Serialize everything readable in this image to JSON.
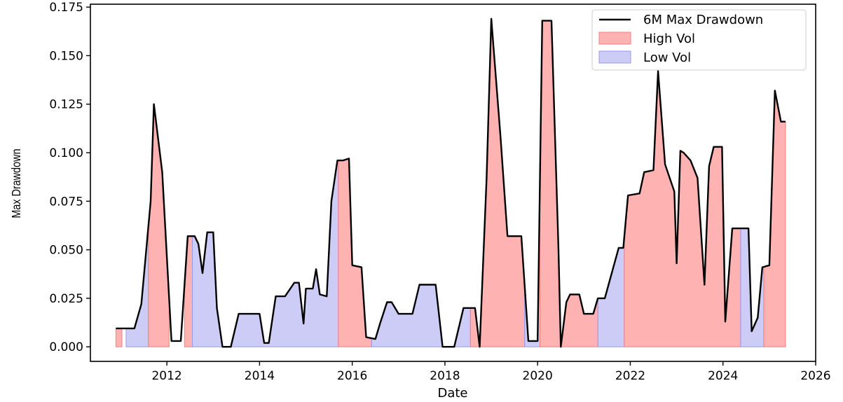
{
  "chart_data": {
    "type": "area",
    "title": "",
    "xlabel": "Date",
    "ylabel": "Max Drawdown",
    "xlim": [
      2010.35,
      2026.0
    ],
    "ylim": [
      -0.0075,
      0.1765
    ],
    "xticks": [
      {
        "value": 2012,
        "label": "2012"
      },
      {
        "value": 2014,
        "label": "2014"
      },
      {
        "value": 2016,
        "label": "2016"
      },
      {
        "value": 2018,
        "label": "2018"
      },
      {
        "value": 2020,
        "label": "2020"
      },
      {
        "value": 2022,
        "label": "2022"
      },
      {
        "value": 2024,
        "label": "2024"
      },
      {
        "value": 2026,
        "label": "2026"
      }
    ],
    "yticks": [
      {
        "value": 0.0,
        "label": "0.000"
      },
      {
        "value": 0.025,
        "label": "0.025"
      },
      {
        "value": 0.05,
        "label": "0.050"
      },
      {
        "value": 0.075,
        "label": "0.075"
      },
      {
        "value": 0.1,
        "label": "0.100"
      },
      {
        "value": 0.125,
        "label": "0.125"
      },
      {
        "value": 0.15,
        "label": "0.150"
      },
      {
        "value": 0.175,
        "label": "0.175"
      }
    ],
    "legend": {
      "position": "top-right",
      "entries": [
        {
          "label": "6M Max Drawdown",
          "kind": "line",
          "color": "#000000"
        },
        {
          "label": "High Vol",
          "kind": "fill",
          "color": "#ff7f7f"
        },
        {
          "label": "Low Vol",
          "kind": "fill",
          "color": "#9999ee"
        }
      ]
    },
    "series": [
      {
        "name": "6M Max Drawdown",
        "color": "#000000",
        "x": [
          2010.9,
          2011.3,
          2011.45,
          2011.65,
          2011.72,
          2011.9,
          2012.1,
          2012.3,
          2012.45,
          2012.6,
          2012.68,
          2012.77,
          2012.87,
          2013.0,
          2013.08,
          2013.2,
          2013.38,
          2013.55,
          2013.85,
          2014.0,
          2014.1,
          2014.2,
          2014.35,
          2014.55,
          2014.75,
          2014.85,
          2014.95,
          2015.0,
          2015.15,
          2015.22,
          2015.3,
          2015.45,
          2015.55,
          2015.68,
          2015.8,
          2015.93,
          2016.0,
          2016.2,
          2016.3,
          2016.5,
          2016.6,
          2016.75,
          2016.85,
          2017.0,
          2017.1,
          2017.3,
          2017.45,
          2017.6,
          2017.8,
          2017.95,
          2018.2,
          2018.4,
          2018.5,
          2018.65,
          2018.75,
          2018.9,
          2019.0,
          2019.2,
          2019.35,
          2019.5,
          2019.65,
          2019.8,
          2020.0,
          2020.1,
          2020.3,
          2020.45,
          2020.5,
          2020.62,
          2020.7,
          2020.9,
          2021.0,
          2021.2,
          2021.3,
          2021.45,
          2021.75,
          2021.85,
          2021.95,
          2022.2,
          2022.3,
          2022.5,
          2022.6,
          2022.75,
          2022.95,
          2023.0,
          2023.08,
          2023.15,
          2023.3,
          2023.45,
          2023.6,
          2023.7,
          2023.8,
          2023.9,
          2023.98,
          2024.05,
          2024.2,
          2024.3,
          2024.55,
          2024.62,
          2024.75,
          2024.85,
          2025.0,
          2025.12,
          2025.25,
          2025.35
        ],
        "y": [
          0.0095,
          0.0095,
          0.022,
          0.075,
          0.125,
          0.09,
          0.003,
          0.003,
          0.057,
          0.057,
          0.053,
          0.038,
          0.059,
          0.059,
          0.02,
          0.0,
          0.0,
          0.017,
          0.017,
          0.017,
          0.002,
          0.002,
          0.026,
          0.026,
          0.033,
          0.033,
          0.012,
          0.03,
          0.03,
          0.04,
          0.027,
          0.026,
          0.075,
          0.096,
          0.096,
          0.097,
          0.042,
          0.041,
          0.005,
          0.004,
          0.012,
          0.023,
          0.023,
          0.017,
          0.017,
          0.017,
          0.032,
          0.032,
          0.032,
          0.0,
          0.0,
          0.02,
          0.02,
          0.02,
          0.0,
          0.087,
          0.169,
          0.108,
          0.057,
          0.057,
          0.057,
          0.003,
          0.003,
          0.168,
          0.168,
          0.05,
          0.0,
          0.023,
          0.027,
          0.027,
          0.017,
          0.017,
          0.025,
          0.025,
          0.051,
          0.051,
          0.078,
          0.079,
          0.09,
          0.091,
          0.142,
          0.094,
          0.08,
          0.043,
          0.101,
          0.1,
          0.096,
          0.087,
          0.032,
          0.093,
          0.103,
          0.103,
          0.103,
          0.013,
          0.061,
          0.061,
          0.061,
          0.008,
          0.015,
          0.041,
          0.042,
          0.132,
          0.116,
          0.116
        ]
      }
    ],
    "regions": [
      {
        "label": "High Vol",
        "x0": 2010.9,
        "x1": 2011.03
      },
      {
        "label": "Low Vol",
        "x0": 2011.12,
        "x1": 2011.6
      },
      {
        "label": "High Vol",
        "x0": 2011.6,
        "x1": 2012.05
      },
      {
        "label": "High Vol",
        "x0": 2012.38,
        "x1": 2012.55
      },
      {
        "label": "Low Vol",
        "x0": 2012.55,
        "x1": 2015.7
      },
      {
        "label": "High Vol",
        "x0": 2015.7,
        "x1": 2016.42
      },
      {
        "label": "Low Vol",
        "x0": 2016.42,
        "x1": 2018.55
      },
      {
        "label": "High Vol",
        "x0": 2018.55,
        "x1": 2019.72
      },
      {
        "label": "Low Vol",
        "x0": 2019.72,
        "x1": 2020.05
      },
      {
        "label": "High Vol",
        "x0": 2020.05,
        "x1": 2021.3
      },
      {
        "label": "Low Vol",
        "x0": 2021.3,
        "x1": 2021.87
      },
      {
        "label": "High Vol",
        "x0": 2021.87,
        "x1": 2024.38
      },
      {
        "label": "Low Vol",
        "x0": 2024.38,
        "x1": 2024.88
      },
      {
        "label": "High Vol",
        "x0": 2024.88,
        "x1": 2025.35
      }
    ]
  }
}
